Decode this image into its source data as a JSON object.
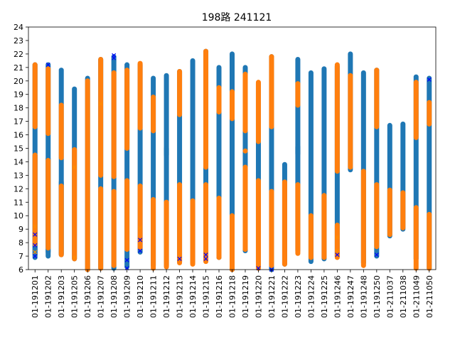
{
  "chart_data": {
    "type": "scatter",
    "title": "198路  241121",
    "xlabel": "",
    "ylabel": "",
    "ylim": [
      6,
      24
    ],
    "yticks": [
      6,
      7,
      8,
      9,
      10,
      11,
      12,
      13,
      14,
      15,
      16,
      17,
      18,
      19,
      20,
      21,
      22,
      23,
      24
    ],
    "grid": false,
    "legend": "none",
    "categories": [
      "01-191201",
      "01-191202",
      "01-191203",
      "01-191205",
      "01-191206",
      "01-191207",
      "01-191208",
      "01-191209",
      "01-191210",
      "01-191211",
      "01-191212",
      "01-191213",
      "01-191214",
      "01-191215",
      "01-191216",
      "01-191218",
      "01-191219",
      "01-191220",
      "01-191221",
      "01-191222",
      "01-191223",
      "01-191224",
      "01-191225",
      "01-191246",
      "01-191247",
      "01-191248",
      "01-191250",
      "01-211037",
      "01-211038",
      "01-211049",
      "01-211050"
    ],
    "colors": {
      "blue": "#1f77b4",
      "orange": "#ff7f0e",
      "marker_blue": "#0000ff",
      "marker_orange": "#ff8c00"
    },
    "series": [
      {
        "color": "blue",
        "segments": [
          [
            [
              6.9,
              21.2
            ],
            [
              7.1,
              14.5
            ]
          ],
          [
            [
              7.3,
              21.2
            ],
            [
              7.0,
              14.2
            ]
          ],
          [
            [
              7.1,
              20.8
            ],
            [
              7.2,
              12.5
            ]
          ],
          [
            [
              6.8,
              19.4
            ]
          ],
          [
            [
              6.0,
              20.2
            ]
          ],
          [
            [
              6.1,
              21.6
            ]
          ],
          [
            [
              6.1,
              21.8
            ]
          ],
          [
            [
              6.2,
              21.2
            ]
          ],
          [
            [
              7.3,
              21.2
            ]
          ],
          [
            [
              6.3,
              20.2
            ]
          ],
          [
            [
              6.3,
              20.4
            ],
            [
              14.5,
              15.0
            ]
          ],
          [
            [
              6.6,
              20.7
            ]
          ],
          [
            [
              6.5,
              21.5
            ]
          ],
          [
            [
              6.7,
              22.2
            ]
          ],
          [
            [
              6.9,
              21.0
            ]
          ],
          [
            [
              6.0,
              22.0
            ]
          ],
          [
            [
              7.4,
              21.0
            ],
            [
              14.8,
              14.8
            ]
          ],
          [
            [
              6.2,
              19.8
            ]
          ],
          [
            [
              6.0,
              21.8
            ]
          ],
          [
            [
              6.4,
              13.8
            ]
          ],
          [
            [
              7.4,
              21.6
            ],
            [
              14.6,
              15.1
            ]
          ],
          [
            [
              6.6,
              20.6
            ]
          ],
          [
            [
              6.8,
              20.9
            ]
          ],
          [
            [
              7.0,
              21.1
            ]
          ],
          [
            [
              13.4,
              22.0
            ]
          ],
          [
            [
              6.5,
              20.6
            ]
          ],
          [
            [
              7.0,
              20.8
            ]
          ],
          [
            [
              8.5,
              16.7
            ]
          ],
          [
            [
              9.0,
              16.8
            ]
          ],
          [
            [
              6.8,
              20.3
            ]
          ],
          [
            [
              6.1,
              20.2
            ]
          ]
        ]
      },
      {
        "color": "orange",
        "segments": [
          [
            [
              16.6,
              21.2
            ],
            [
              7.9,
              14.5
            ]
          ],
          [
            [
              16.1,
              20.9
            ],
            [
              7.6,
              14.1
            ]
          ],
          [
            [
              14.3,
              18.2
            ],
            [
              7.1,
              12.2
            ]
          ],
          [
            [
              6.8,
              14.9
            ]
          ],
          [
            [
              6.0,
              20.0
            ]
          ],
          [
            [
              13.0,
              21.6
            ],
            [
              6.1,
              12.0
            ]
          ],
          [
            [
              12.9,
              20.6
            ],
            [
              6.3,
              11.8
            ]
          ],
          [
            [
              15.0,
              20.8
            ],
            [
              7.5,
              12.6
            ]
          ],
          [
            [
              16.5,
              21.3
            ],
            [
              7.6,
              12.2
            ]
          ],
          [
            [
              16.3,
              18.8
            ],
            [
              6.1,
              11.2
            ]
          ],
          [
            [
              6.2,
              11.0
            ]
          ],
          [
            [
              17.5,
              20.7
            ],
            [
              6.5,
              12.3
            ]
          ],
          [
            [
              6.4,
              11.1
            ]
          ],
          [
            [
              13.6,
              22.2
            ],
            [
              6.6,
              12.3
            ]
          ],
          [
            [
              17.7,
              19.5
            ],
            [
              6.9,
              11.3
            ]
          ],
          [
            [
              17.2,
              19.2
            ],
            [
              6.0,
              10.0
            ]
          ],
          [
            [
              16.3,
              20.5
            ],
            [
              7.5,
              13.6
            ],
            [
              14.8,
              14.8
            ]
          ],
          [
            [
              15.5,
              19.9
            ],
            [
              6.1,
              12.6
            ]
          ],
          [
            [
              16.6,
              21.8
            ],
            [
              6.3,
              11.8
            ]
          ],
          [
            [
              6.4,
              12.5
            ]
          ],
          [
            [
              18.2,
              19.8
            ],
            [
              7.2,
              12.3
            ]
          ],
          [
            [
              6.9,
              10.0
            ]
          ],
          [
            [
              6.9,
              11.5
            ]
          ],
          [
            [
              13.3,
              21.2
            ],
            [
              6.9,
              9.3
            ]
          ],
          [
            [
              13.6,
              20.4
            ]
          ],
          [
            [
              6.3,
              13.3
            ]
          ],
          [
            [
              16.6,
              20.8
            ],
            [
              7.7,
              12.3
            ]
          ],
          [
            [
              8.6,
              11.9
            ]
          ],
          [
            [
              9.1,
              11.7
            ]
          ],
          [
            [
              15.8,
              19.9
            ],
            [
              6.1,
              10.6
            ]
          ],
          [
            [
              16.8,
              18.4
            ],
            [
              6.1,
              10.1
            ]
          ]
        ]
      },
      {
        "color": "marker_blue",
        "marker": "x",
        "points": [
          [
            0,
            7.0
          ],
          [
            0,
            7.8
          ],
          [
            0,
            8.6
          ],
          [
            1,
            21.2
          ],
          [
            6,
            21.9
          ],
          [
            6,
            21.7
          ],
          [
            7,
            6.1
          ],
          [
            7,
            6.7
          ],
          [
            8,
            7.4
          ],
          [
            8,
            8.2
          ],
          [
            11,
            6.8
          ],
          [
            13,
            6.8
          ],
          [
            13,
            7.1
          ],
          [
            17,
            6.1
          ],
          [
            18,
            6.0
          ],
          [
            23,
            7.1
          ],
          [
            26,
            7.1
          ],
          [
            30,
            20.1
          ]
        ]
      },
      {
        "color": "marker_orange",
        "marker": "x",
        "points": [
          [
            0,
            7.3
          ],
          [
            0,
            9.2
          ],
          [
            3,
            6.9
          ],
          [
            3,
            13.6
          ],
          [
            5,
            18.3
          ],
          [
            8,
            9.1
          ],
          [
            23,
            7.4
          ],
          [
            23,
            8.4
          ]
        ]
      }
    ]
  }
}
